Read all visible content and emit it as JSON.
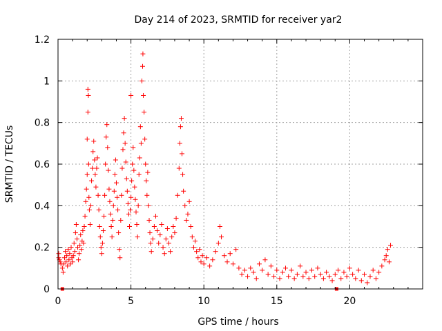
{
  "chart_data": {
    "type": "scatter",
    "title": "Day 214 of 2023, SRMTID for receiver yar2",
    "xlabel": "GPS time / hours",
    "ylabel": "SRMTID / TECUs",
    "xlim": [
      0,
      25
    ],
    "ylim": [
      0,
      1.2
    ],
    "x_ticks": [
      0,
      5,
      10,
      15,
      20
    ],
    "x_tick_labels": [
      "0",
      "5",
      "10",
      "15",
      "20"
    ],
    "y_ticks": [
      0,
      0.2,
      0.4,
      0.6,
      0.8,
      1,
      1.2
    ],
    "y_tick_labels": [
      "0",
      "0.2",
      "0.4",
      "0.6",
      "0.8",
      "1",
      "1.2"
    ],
    "grid": true,
    "marker": "plus",
    "color": "#ff0000",
    "series": [
      {
        "name": "SRMTID",
        "points": [
          [
            0.05,
            0.17
          ],
          [
            0.05,
            0.15
          ],
          [
            0.1,
            0.14
          ],
          [
            0.15,
            0.13
          ],
          [
            0.2,
            0.12
          ],
          [
            0.3,
            0.1
          ],
          [
            0.35,
            0.08
          ],
          [
            0.4,
            0.12
          ],
          [
            0.45,
            0.15
          ],
          [
            0.5,
            0.18
          ],
          [
            0.55,
            0.13
          ],
          [
            0.6,
            0.16
          ],
          [
            0.65,
            0.11
          ],
          [
            0.7,
            0.19
          ],
          [
            0.75,
            0.14
          ],
          [
            0.8,
            0.17
          ],
          [
            0.85,
            0.12
          ],
          [
            0.9,
            0.2
          ],
          [
            0.95,
            0.15
          ],
          [
            1.0,
            0.13
          ],
          [
            1.05,
            0.16
          ],
          [
            1.1,
            0.22
          ],
          [
            1.15,
            0.18
          ],
          [
            1.2,
            0.27
          ],
          [
            1.25,
            0.31
          ],
          [
            1.3,
            0.24
          ],
          [
            1.35,
            0.2
          ],
          [
            1.4,
            0.14
          ],
          [
            1.45,
            0.17
          ],
          [
            1.5,
            0.21
          ],
          [
            1.55,
            0.26
          ],
          [
            1.6,
            0.19
          ],
          [
            1.65,
            0.23
          ],
          [
            1.7,
            0.28
          ],
          [
            1.75,
            0.22
          ],
          [
            1.8,
            0.3
          ],
          [
            1.85,
            0.35
          ],
          [
            1.9,
            0.42
          ],
          [
            1.95,
            0.48
          ],
          [
            2.0,
            0.55
          ],
          [
            2.0,
            0.72
          ],
          [
            2.05,
            0.85
          ],
          [
            2.05,
            0.96
          ],
          [
            2.08,
            0.93
          ],
          [
            2.1,
            0.6
          ],
          [
            2.12,
            0.44
          ],
          [
            2.15,
            0.38
          ],
          [
            2.2,
            0.31
          ],
          [
            2.25,
            0.4
          ],
          [
            2.3,
            0.52
          ],
          [
            2.35,
            0.58
          ],
          [
            2.4,
            0.66
          ],
          [
            2.45,
            0.71
          ],
          [
            2.5,
            0.62
          ],
          [
            2.55,
            0.55
          ],
          [
            2.6,
            0.49
          ],
          [
            2.65,
            0.58
          ],
          [
            2.7,
            0.63
          ],
          [
            2.75,
            0.45
          ],
          [
            2.8,
            0.38
          ],
          [
            2.85,
            0.3
          ],
          [
            2.9,
            0.25
          ],
          [
            2.95,
            0.2
          ],
          [
            3.0,
            0.17
          ],
          [
            3.05,
            0.22
          ],
          [
            3.1,
            0.28
          ],
          [
            3.15,
            0.35
          ],
          [
            3.2,
            0.45
          ],
          [
            3.25,
            0.6
          ],
          [
            3.3,
            0.73
          ],
          [
            3.35,
            0.79
          ],
          [
            3.4,
            0.68
          ],
          [
            3.45,
            0.57
          ],
          [
            3.5,
            0.48
          ],
          [
            3.55,
            0.42
          ],
          [
            3.6,
            0.36
          ],
          [
            3.65,
            0.3
          ],
          [
            3.7,
            0.25
          ],
          [
            3.75,
            0.33
          ],
          [
            3.8,
            0.4
          ],
          [
            3.85,
            0.47
          ],
          [
            3.9,
            0.55
          ],
          [
            3.95,
            0.62
          ],
          [
            4.0,
            0.51
          ],
          [
            4.05,
            0.44
          ],
          [
            4.1,
            0.38
          ],
          [
            4.15,
            0.27
          ],
          [
            4.2,
            0.19
          ],
          [
            4.25,
            0.15
          ],
          [
            4.3,
            0.33
          ],
          [
            4.35,
            0.45
          ],
          [
            4.4,
            0.58
          ],
          [
            4.45,
            0.67
          ],
          [
            4.5,
            0.75
          ],
          [
            4.55,
            0.82
          ],
          [
            4.6,
            0.7
          ],
          [
            4.65,
            0.61
          ],
          [
            4.7,
            0.53
          ],
          [
            4.75,
            0.47
          ],
          [
            4.8,
            0.41
          ],
          [
            4.85,
            0.36
          ],
          [
            4.9,
            0.3
          ],
          [
            4.95,
            0.38
          ],
          [
            5.0,
            0.44
          ],
          [
            5.0,
            0.93
          ],
          [
            5.05,
            0.52
          ],
          [
            5.1,
            0.6
          ],
          [
            5.15,
            0.68
          ],
          [
            5.2,
            0.57
          ],
          [
            5.25,
            0.49
          ],
          [
            5.3,
            0.43
          ],
          [
            5.35,
            0.37
          ],
          [
            5.4,
            0.31
          ],
          [
            5.45,
            0.25
          ],
          [
            5.5,
            0.4
          ],
          [
            5.55,
            0.55
          ],
          [
            5.6,
            0.63
          ],
          [
            5.65,
            0.78
          ],
          [
            5.7,
            0.7
          ],
          [
            5.75,
            1.0
          ],
          [
            5.8,
            1.07
          ],
          [
            5.82,
            1.13
          ],
          [
            5.85,
            0.93
          ],
          [
            5.9,
            0.85
          ],
          [
            5.95,
            0.72
          ],
          [
            6.0,
            0.6
          ],
          [
            6.05,
            0.52
          ],
          [
            6.1,
            0.45
          ],
          [
            6.15,
            0.56
          ],
          [
            6.2,
            0.4
          ],
          [
            6.25,
            0.33
          ],
          [
            6.3,
            0.27
          ],
          [
            6.35,
            0.22
          ],
          [
            6.4,
            0.18
          ],
          [
            6.5,
            0.24
          ],
          [
            6.6,
            0.3
          ],
          [
            6.7,
            0.35
          ],
          [
            6.8,
            0.28
          ],
          [
            6.9,
            0.22
          ],
          [
            7.0,
            0.26
          ],
          [
            7.1,
            0.31
          ],
          [
            7.2,
            0.2
          ],
          [
            7.3,
            0.17
          ],
          [
            7.4,
            0.24
          ],
          [
            7.5,
            0.29
          ],
          [
            7.6,
            0.22
          ],
          [
            7.7,
            0.18
          ],
          [
            7.8,
            0.25
          ],
          [
            7.9,
            0.3
          ],
          [
            8.0,
            0.27
          ],
          [
            8.1,
            0.34
          ],
          [
            8.2,
            0.45
          ],
          [
            8.3,
            0.58
          ],
          [
            8.35,
            0.7
          ],
          [
            8.4,
            0.78
          ],
          [
            8.45,
            0.82
          ],
          [
            8.5,
            0.65
          ],
          [
            8.55,
            0.55
          ],
          [
            8.6,
            0.47
          ],
          [
            8.7,
            0.4
          ],
          [
            8.8,
            0.33
          ],
          [
            8.9,
            0.36
          ],
          [
            9.0,
            0.42
          ],
          [
            9.1,
            0.3
          ],
          [
            9.2,
            0.25
          ],
          [
            9.3,
            0.2
          ],
          [
            9.4,
            0.23
          ],
          [
            9.5,
            0.18
          ],
          [
            9.6,
            0.15
          ],
          [
            9.7,
            0.19
          ],
          [
            9.8,
            0.13
          ],
          [
            9.9,
            0.16
          ],
          [
            10.0,
            0.12
          ],
          [
            10.2,
            0.15
          ],
          [
            10.4,
            0.11
          ],
          [
            10.6,
            0.14
          ],
          [
            10.8,
            0.18
          ],
          [
            11.0,
            0.22
          ],
          [
            11.1,
            0.3
          ],
          [
            11.2,
            0.25
          ],
          [
            11.4,
            0.16
          ],
          [
            11.6,
            0.13
          ],
          [
            11.8,
            0.17
          ],
          [
            12.0,
            0.12
          ],
          [
            12.2,
            0.19
          ],
          [
            12.4,
            0.1
          ],
          [
            12.6,
            0.07
          ],
          [
            12.8,
            0.09
          ],
          [
            13.0,
            0.06
          ],
          [
            13.2,
            0.1
          ],
          [
            13.4,
            0.08
          ],
          [
            13.6,
            0.05
          ],
          [
            13.8,
            0.12
          ],
          [
            14.0,
            0.09
          ],
          [
            14.2,
            0.14
          ],
          [
            14.4,
            0.07
          ],
          [
            14.6,
            0.11
          ],
          [
            14.8,
            0.06
          ],
          [
            15.0,
            0.09
          ],
          [
            15.2,
            0.05
          ],
          [
            15.4,
            0.08
          ],
          [
            15.6,
            0.1
          ],
          [
            15.8,
            0.06
          ],
          [
            16.0,
            0.09
          ],
          [
            16.2,
            0.05
          ],
          [
            16.4,
            0.07
          ],
          [
            16.6,
            0.11
          ],
          [
            16.8,
            0.06
          ],
          [
            17.0,
            0.08
          ],
          [
            17.2,
            0.05
          ],
          [
            17.4,
            0.09
          ],
          [
            17.6,
            0.06
          ],
          [
            17.8,
            0.1
          ],
          [
            18.0,
            0.07
          ],
          [
            18.2,
            0.05
          ],
          [
            18.4,
            0.08
          ],
          [
            18.6,
            0.06
          ],
          [
            18.8,
            0.04
          ],
          [
            19.0,
            0.07
          ],
          [
            19.2,
            0.09
          ],
          [
            19.4,
            0.05
          ],
          [
            19.6,
            0.08
          ],
          [
            19.8,
            0.06
          ],
          [
            20.0,
            0.1
          ],
          [
            20.2,
            0.07
          ],
          [
            20.4,
            0.05
          ],
          [
            20.6,
            0.09
          ],
          [
            20.8,
            0.04
          ],
          [
            21.0,
            0.07
          ],
          [
            21.2,
            0.03
          ],
          [
            21.4,
            0.06
          ],
          [
            21.6,
            0.09
          ],
          [
            21.8,
            0.05
          ],
          [
            22.0,
            0.08
          ],
          [
            22.2,
            0.11
          ],
          [
            22.4,
            0.14
          ],
          [
            22.5,
            0.16
          ],
          [
            22.6,
            0.19
          ],
          [
            22.7,
            0.13
          ],
          [
            22.8,
            0.21
          ]
        ]
      }
    ],
    "baseline_markers": [
      0.3,
      19.1
    ]
  }
}
